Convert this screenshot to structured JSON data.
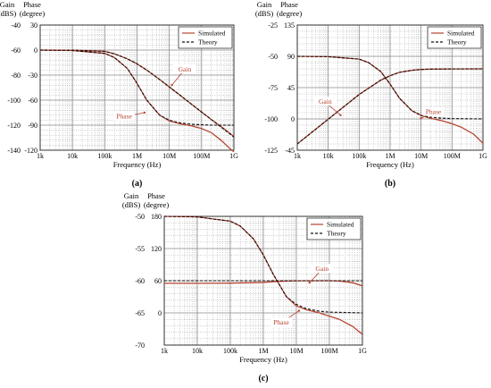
{
  "colors": {
    "simulated": "#b5432f",
    "theory": "#111111",
    "minor_grid": "#9a9a9a",
    "major_grid": "#8a8a8a"
  },
  "chart_data": [
    {
      "id": "a",
      "type": "line",
      "panel_label": "(a)",
      "xlabel": "Frequency (Hz)",
      "x_scale": "log",
      "xlim": [
        1000,
        1000000000
      ],
      "x_ticks": [
        {
          "v": 1000,
          "label": "1k"
        },
        {
          "v": 10000,
          "label": "10k"
        },
        {
          "v": 100000,
          "label": "100k"
        },
        {
          "v": 1000000,
          "label": "1M"
        },
        {
          "v": 10000000,
          "label": "10M"
        },
        {
          "v": 100000000,
          "label": "100M"
        },
        {
          "v": 1000000000,
          "label": "1G"
        }
      ],
      "y_left": {
        "label_line1": "Gain",
        "label_line2": "(dBS)",
        "lim": [
          -140,
          -40
        ],
        "ticks": [
          {
            "v": -40,
            "label": "-40"
          },
          {
            "v": -60,
            "label": "-60"
          },
          {
            "v": -80,
            "label": "-80"
          },
          {
            "v": -100,
            "label": "-100"
          },
          {
            "v": -120,
            "label": "-120"
          },
          {
            "v": -140,
            "label": "-140"
          }
        ]
      },
      "y_right": {
        "label_line1": "Phase",
        "label_line2": "(degree)",
        "lim": [
          -120,
          30
        ],
        "ticks": [
          {
            "v": 30,
            "label": "30"
          },
          {
            "v": 0,
            "label": "0"
          },
          {
            "v": -30,
            "label": "-30"
          },
          {
            "v": -60,
            "label": "-60"
          },
          {
            "v": -90,
            "label": "-90"
          },
          {
            "v": -120,
            "label": "-120"
          }
        ]
      },
      "legend": {
        "position": "top-right",
        "entries": [
          {
            "name": "Simulated",
            "style": "solid"
          },
          {
            "name": "Theory",
            "style": "dashed"
          }
        ]
      },
      "annotations": [
        {
          "text": "Gain",
          "x": 30000000,
          "axis": "left",
          "y": -77,
          "arrow_to": {
            "x": 12000000,
            "y": -88
          }
        },
        {
          "text": "Phase",
          "x": 400000,
          "axis": "right",
          "y": -82,
          "arrow_to": {
            "x": 1700000,
            "y": -75
          }
        }
      ],
      "series": [
        {
          "name": "Gain",
          "axis": "left",
          "simulated": {
            "x": [
              1000,
              10000,
              100000,
              200000,
              500000,
              1000000,
              2000000,
              5000000,
              10000000,
              20000000,
              50000000,
              100000000,
              200000000,
              500000000,
              1000000000
            ],
            "y": [
              -60,
              -60.1,
              -61,
              -63,
              -67,
              -71,
              -76,
              -83.5,
              -89.5,
              -95.5,
              -103.5,
              -109.5,
              -115.5,
              -123,
              -129
            ]
          },
          "theory": {
            "x": [
              1000,
              10000,
              100000,
              200000,
              500000,
              1000000,
              2000000,
              5000000,
              10000000,
              20000000,
              50000000,
              100000000,
              200000000,
              500000000,
              1000000000
            ],
            "y": [
              -60,
              -60.1,
              -61,
              -63,
              -67,
              -71,
              -76,
              -83.5,
              -89.5,
              -95.5,
              -103.5,
              -109.5,
              -115.5,
              -123.5,
              -129.5
            ]
          }
        },
        {
          "name": "Phase",
          "axis": "right",
          "simulated": {
            "x": [
              1000,
              10000,
              100000,
              200000,
              500000,
              1000000,
              2000000,
              5000000,
              10000000,
              20000000,
              50000000,
              100000000,
              200000000,
              400000000,
              700000000,
              1000000000
            ],
            "y": [
              0,
              -0.5,
              -4,
              -9,
              -22,
              -40,
              -60,
              -78,
              -85,
              -88,
              -91,
              -94,
              -99,
              -108,
              -117,
              -122
            ]
          },
          "theory": {
            "x": [
              1000,
              10000,
              100000,
              200000,
              500000,
              1000000,
              2000000,
              5000000,
              10000000,
              20000000,
              50000000,
              100000000,
              200000000,
              500000000,
              1000000000
            ],
            "y": [
              0,
              -0.5,
              -4,
              -9,
              -22,
              -40,
              -60,
              -78,
              -84,
              -87,
              -89,
              -89.5,
              -90,
              -90,
              -90
            ]
          }
        }
      ]
    },
    {
      "id": "b",
      "type": "line",
      "panel_label": "(b)",
      "xlabel": "Frequency (Hz)",
      "x_scale": "log",
      "xlim": [
        1000,
        1000000000
      ],
      "x_ticks": [
        {
          "v": 1000,
          "label": "1k"
        },
        {
          "v": 10000,
          "label": "10k"
        },
        {
          "v": 100000,
          "label": "100k"
        },
        {
          "v": 1000000,
          "label": "1M"
        },
        {
          "v": 10000000,
          "label": "10M"
        },
        {
          "v": 100000000,
          "label": "100M"
        },
        {
          "v": 1000000000,
          "label": "1G"
        }
      ],
      "y_left": {
        "label_line1": "Gain",
        "label_line2": "(dBS)",
        "lim": [
          -125,
          -25
        ],
        "ticks": [
          {
            "v": -25,
            "label": "-25"
          },
          {
            "v": -50,
            "label": "-50"
          },
          {
            "v": -75,
            "label": "-75"
          },
          {
            "v": -100,
            "label": "-100"
          },
          {
            "v": -125,
            "label": "-125"
          }
        ]
      },
      "y_right": {
        "label_line1": "Phase",
        "label_line2": "(degree)",
        "lim": [
          -45,
          135
        ],
        "ticks": [
          {
            "v": 135,
            "label": "135"
          },
          {
            "v": 90,
            "label": "90"
          },
          {
            "v": 45,
            "label": "45"
          },
          {
            "v": 0,
            "label": "0"
          },
          {
            "v": -45,
            "label": "-45"
          }
        ]
      },
      "legend": {
        "position": "top-right",
        "entries": [
          {
            "name": "Simulated",
            "style": "solid"
          },
          {
            "name": "Theory",
            "style": "dashed"
          }
        ]
      },
      "annotations": [
        {
          "text": "Gain",
          "x": 8000,
          "axis": "left",
          "y": -88,
          "arrow_to": {
            "x": 25000,
            "y": -97
          }
        },
        {
          "text": "Phase",
          "x": 25000000,
          "axis": "right",
          "y": 7,
          "arrow_to": {
            "x": 10000000,
            "y": 1
          }
        }
      ],
      "series": [
        {
          "name": "Gain",
          "axis": "left",
          "simulated": {
            "x": [
              1000,
              10000,
              100000,
              200000,
              500000,
              1000000,
              2000000,
              5000000,
              10000000,
              20000000,
              100000000,
              1000000000
            ],
            "y": [
              -120,
              -100.2,
              -80.5,
              -75.5,
              -69,
              -65.5,
              -62.8,
              -61.2,
              -60.5,
              -60.2,
              -60.1,
              -60
            ]
          },
          "theory": {
            "x": [
              1000,
              10000,
              100000,
              200000,
              500000,
              1000000,
              2000000,
              5000000,
              10000000,
              20000000,
              100000000,
              1000000000
            ],
            "y": [
              -120,
              -100.2,
              -80.5,
              -75.5,
              -69,
              -65.5,
              -62.8,
              -61.2,
              -60.5,
              -60.2,
              -60.1,
              -60
            ]
          }
        },
        {
          "name": "Phase",
          "axis": "right",
          "simulated": {
            "x": [
              1000,
              10000,
              100000,
              200000,
              500000,
              1000000,
              2000000,
              5000000,
              10000000,
              20000000,
              50000000,
              100000000,
              200000000,
              500000000,
              1000000000
            ],
            "y": [
              90,
              89.5,
              86,
              81,
              68,
              50,
              30,
              12,
              5,
              1,
              -3,
              -7,
              -12,
              -22,
              -35
            ]
          },
          "theory": {
            "x": [
              1000,
              10000,
              100000,
              200000,
              500000,
              1000000,
              2000000,
              5000000,
              10000000,
              20000000,
              50000000,
              100000000,
              1000000000
            ],
            "y": [
              90,
              89.5,
              86,
              81,
              68,
              50,
              30,
              12,
              5,
              2.5,
              1,
              0.5,
              0
            ]
          }
        }
      ]
    },
    {
      "id": "c",
      "type": "line",
      "panel_label": "(c)",
      "xlabel": "Frequency (Hz)",
      "x_scale": "log",
      "xlim": [
        1000,
        1000000000
      ],
      "x_ticks": [
        {
          "v": 1000,
          "label": "1k"
        },
        {
          "v": 10000,
          "label": "10k"
        },
        {
          "v": 100000,
          "label": "100k"
        },
        {
          "v": 1000000,
          "label": "1M"
        },
        {
          "v": 10000000,
          "label": "10M"
        },
        {
          "v": 100000000,
          "label": "100M"
        },
        {
          "v": 1000000000,
          "label": "1G"
        }
      ],
      "y_left": {
        "label_line1": "Gain",
        "label_line2": "(dBS)",
        "lim": [
          -70,
          -50
        ],
        "ticks": [
          {
            "v": -50,
            "label": "-50"
          },
          {
            "v": -55,
            "label": "-55"
          },
          {
            "v": -60,
            "label": "-60"
          },
          {
            "v": -65,
            "label": "-65"
          },
          {
            "v": -70,
            "label": "-70"
          }
        ]
      },
      "y_right": {
        "label_line1": "Phase",
        "label_line2": "(degree)",
        "lim": [
          -60,
          180
        ],
        "ticks": [
          {
            "v": 180,
            "label": "180"
          },
          {
            "v": 120,
            "label": "120"
          },
          {
            "v": 60,
            "label": "60"
          },
          {
            "v": 0,
            "label": "0"
          }
        ]
      },
      "legend": {
        "position": "top-right",
        "entries": [
          {
            "name": "Simulated",
            "style": "solid"
          },
          {
            "name": "Theory",
            "style": "dashed"
          }
        ]
      },
      "annotations": [
        {
          "text": "Gain",
          "x": 60000000,
          "axis": "left",
          "y": -58.5,
          "arrow_to": {
            "x": 25000000,
            "y": -60.3
          }
        },
        {
          "text": "Phase",
          "x": 3500000,
          "axis": "right",
          "y": -22,
          "arrow_to": {
            "x": 12000000,
            "y": 4
          }
        }
      ],
      "series": [
        {
          "name": "Gain",
          "axis": "left",
          "simulated": {
            "x": [
              1000,
              10000,
              100000,
              1000000,
              3000000,
              10000000,
              50000000,
              100000000,
              200000000,
              500000000,
              1000000000
            ],
            "y": [
              -60.4,
              -60.4,
              -60.38,
              -60.25,
              -60.1,
              -60.02,
              -60.0,
              -60.0,
              -60.05,
              -60.3,
              -60.8
            ]
          },
          "theory": {
            "x": [
              1000,
              10000,
              100000,
              1000000,
              10000000,
              100000000,
              1000000000
            ],
            "y": [
              -60,
              -60,
              -60,
              -60,
              -60,
              -60,
              -60
            ]
          }
        },
        {
          "name": "Phase",
          "axis": "right",
          "simulated": {
            "x": [
              1000,
              10000,
              100000,
              200000,
              500000,
              1000000,
              2000000,
              5000000,
              10000000,
              20000000,
              50000000,
              100000000,
              200000000,
              500000000,
              1000000000
            ],
            "y": [
              180,
              179,
              171,
              162,
              138,
              108,
              72,
              30,
              13,
              6,
              0,
              -6,
              -12,
              -25,
              -40
            ]
          },
          "theory": {
            "x": [
              1000,
              10000,
              100000,
              200000,
              500000,
              1000000,
              2000000,
              5000000,
              10000000,
              20000000,
              50000000,
              100000000,
              1000000000
            ],
            "y": [
              180,
              179,
              171,
              162,
              138,
              108,
              72,
              30,
              16,
              8,
              3,
              1.5,
              0
            ]
          }
        }
      ]
    }
  ]
}
